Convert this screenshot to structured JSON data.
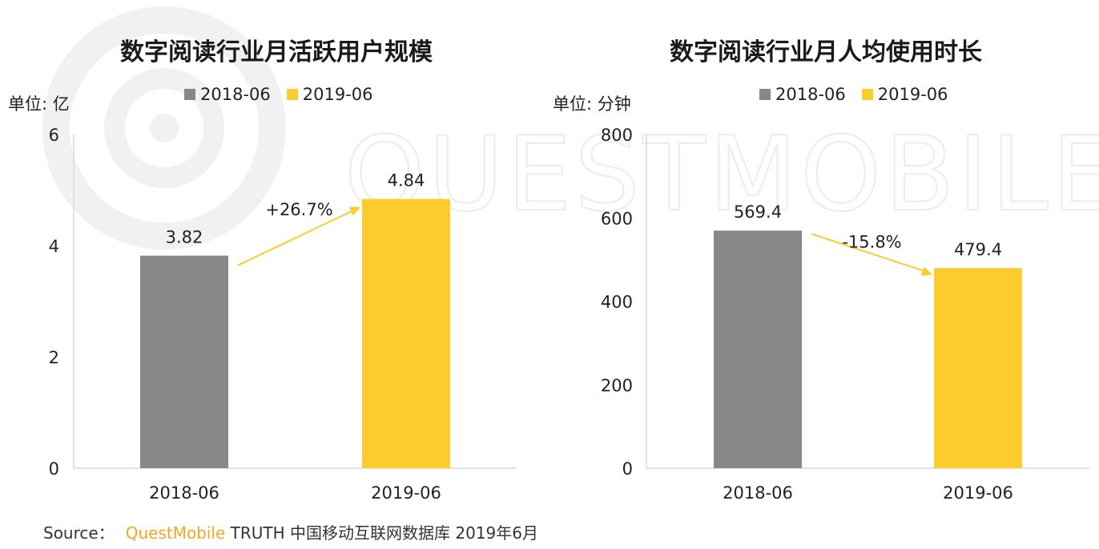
{
  "watermark": {
    "text": "QUESTMOBILE"
  },
  "legend": {
    "items": [
      {
        "label": "2018-06",
        "color": "#888888"
      },
      {
        "label": "2019-06",
        "color": "#fccb2e"
      }
    ]
  },
  "chart_data": [
    {
      "type": "bar",
      "title": "数字阅读行业月活跃用户规模",
      "unit": "单位: 亿",
      "categories": [
        "2018-06",
        "2019-06"
      ],
      "values": [
        3.82,
        4.84
      ],
      "value_labels": [
        "3.82",
        "4.84"
      ],
      "colors": [
        "#888888",
        "#fccb2e"
      ],
      "ylim": [
        0,
        6
      ],
      "yticks": [
        0,
        2,
        4,
        6
      ],
      "change_label": "+26.7%",
      "change_direction": "up",
      "grid": false
    },
    {
      "type": "bar",
      "title": "数字阅读行业月人均使用时长",
      "unit": "单位: 分钟",
      "categories": [
        "2018-06",
        "2019-06"
      ],
      "values": [
        569.4,
        479.4
      ],
      "value_labels": [
        "569.4",
        "479.4"
      ],
      "colors": [
        "#888888",
        "#fccb2e"
      ],
      "ylim": [
        0,
        800
      ],
      "yticks": [
        0,
        200,
        400,
        600,
        800
      ],
      "change_label": "-15.8%",
      "change_direction": "down",
      "grid": false
    }
  ],
  "source": {
    "prefix": "Source：",
    "brand": "QuestMobile",
    "text": "TRUTH 中国移动互联网数据库 2019年6月"
  }
}
